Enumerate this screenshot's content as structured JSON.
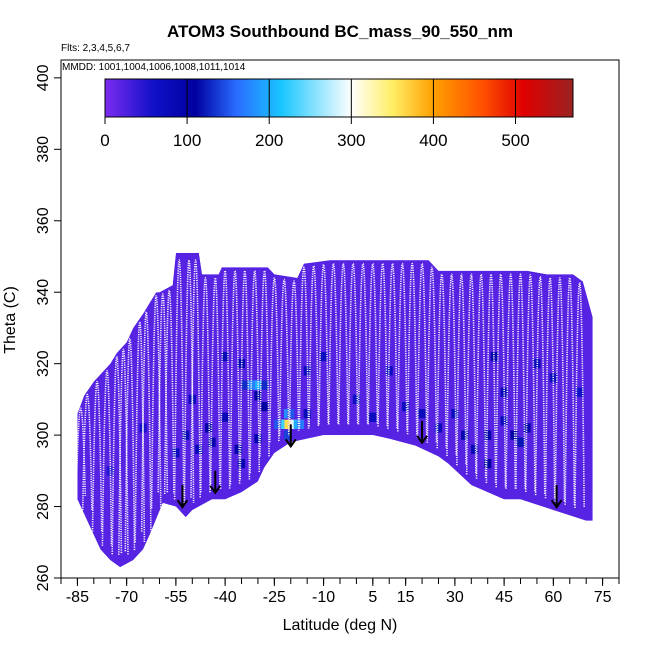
{
  "chart_data": {
    "type": "heatmap",
    "title": "ATOM3 Southbound BC_mass_90_550_nm",
    "flights_label": "Flts: 2,3,4,5,6,7",
    "dates_label": "MMDD: 1001,1004,1006,1008,1011,1014",
    "xlabel": "Latitude (deg N)",
    "ylabel": "Theta (C)",
    "xlim": [
      -90,
      80
    ],
    "ylim": [
      260,
      405
    ],
    "x_tick_labels": [
      "-85",
      "-70",
      "-55",
      "-40",
      "-25",
      "-10",
      "5",
      "15",
      "30",
      "45",
      "60",
      "75"
    ],
    "y_tick_labels": [
      "260",
      "280",
      "300",
      "320",
      "340",
      "360",
      "380",
      "400"
    ],
    "colorbar": {
      "range": [
        0,
        570
      ],
      "tick_labels": [
        "0",
        "100",
        "200",
        "300",
        "400",
        "500"
      ],
      "stops": [
        {
          "value": 0,
          "color": "#7b2cf0"
        },
        {
          "value": 60,
          "color": "#1010c8"
        },
        {
          "value": 110,
          "color": "#0000a0"
        },
        {
          "value": 160,
          "color": "#2a6cff"
        },
        {
          "value": 215,
          "color": "#19c6ff"
        },
        {
          "value": 300,
          "color": "#ffffff"
        },
        {
          "value": 350,
          "color": "#ffee66"
        },
        {
          "value": 400,
          "color": "#ffa000"
        },
        {
          "value": 460,
          "color": "#ff5000"
        },
        {
          "value": 510,
          "color": "#e00000"
        },
        {
          "value": 570,
          "color": "#9a2222"
        }
      ]
    },
    "background_value": 20,
    "domain_top": [
      [
        -85,
        306
      ],
      [
        -83,
        311
      ],
      [
        -80,
        315
      ],
      [
        -78,
        317
      ],
      [
        -75,
        320
      ],
      [
        -73,
        323
      ],
      [
        -70,
        326
      ],
      [
        -68,
        330
      ],
      [
        -65,
        334
      ],
      [
        -63,
        337
      ],
      [
        -61,
        340
      ],
      [
        -60,
        340
      ],
      [
        -56,
        342
      ],
      [
        -55,
        351
      ],
      [
        -48,
        351
      ],
      [
        -47,
        345
      ],
      [
        -42,
        345
      ],
      [
        -41,
        347
      ],
      [
        -27,
        347
      ],
      [
        -25,
        345
      ],
      [
        -18,
        344
      ],
      [
        -16,
        348
      ],
      [
        -8,
        349
      ],
      [
        22,
        349
      ],
      [
        25,
        346
      ],
      [
        52,
        346
      ],
      [
        58,
        345
      ],
      [
        66,
        345
      ],
      [
        69,
        343
      ],
      [
        72,
        333
      ]
    ],
    "domain_bottom": [
      [
        72,
        276
      ],
      [
        70,
        276
      ],
      [
        60,
        279
      ],
      [
        50,
        282
      ],
      [
        45,
        282
      ],
      [
        35,
        286
      ],
      [
        28,
        292
      ],
      [
        25,
        294
      ],
      [
        18,
        297
      ],
      [
        10,
        299
      ],
      [
        5,
        300
      ],
      [
        -10,
        300
      ],
      [
        -20,
        298
      ],
      [
        -25,
        295
      ],
      [
        -28,
        291
      ],
      [
        -30,
        287
      ],
      [
        -35,
        284
      ],
      [
        -40,
        282
      ],
      [
        -44,
        282
      ],
      [
        -50,
        279
      ],
      [
        -52,
        277
      ],
      [
        -55,
        280
      ],
      [
        -59,
        281
      ],
      [
        -63,
        272
      ],
      [
        -65,
        268
      ],
      [
        -68,
        265
      ],
      [
        -70,
        264
      ],
      [
        -72,
        263
      ],
      [
        -75,
        265
      ],
      [
        -78,
        268
      ],
      [
        -80,
        272
      ],
      [
        -85,
        282
      ]
    ],
    "enhanced_cells": [
      {
        "lat": -21,
        "theta": 303,
        "value": 530
      },
      {
        "lat": -20,
        "theta": 303,
        "value": 390
      },
      {
        "lat": -22,
        "theta": 303,
        "value": 360
      },
      {
        "lat": -19,
        "theta": 303,
        "value": 290
      },
      {
        "lat": -23,
        "theta": 303,
        "value": 230
      },
      {
        "lat": -18,
        "theta": 303,
        "value": 200
      },
      {
        "lat": -17,
        "theta": 303,
        "value": 170
      },
      {
        "lat": -24,
        "theta": 303,
        "value": 150
      },
      {
        "lat": -21,
        "theta": 306,
        "value": 180
      },
      {
        "lat": -20,
        "theta": 306,
        "value": 150
      },
      {
        "lat": -21,
        "theta": 300,
        "value": 140
      },
      {
        "lat": -30,
        "theta": 314,
        "value": 200
      },
      {
        "lat": -32,
        "theta": 314,
        "value": 175
      },
      {
        "lat": -28,
        "theta": 314,
        "value": 130
      },
      {
        "lat": -34,
        "theta": 314,
        "value": 130
      },
      {
        "lat": -30,
        "theta": 311,
        "value": 105
      },
      {
        "lat": -28,
        "theta": 308,
        "value": 110
      },
      {
        "lat": -45,
        "theta": 302,
        "value": 110
      },
      {
        "lat": -44,
        "theta": 298,
        "value": 95
      },
      {
        "lat": -36,
        "theta": 296,
        "value": 100
      },
      {
        "lat": -35,
        "theta": 292,
        "value": 90
      },
      {
        "lat": -30,
        "theta": 299,
        "value": 90
      },
      {
        "lat": -40,
        "theta": 305,
        "value": 85
      },
      {
        "lat": -48,
        "theta": 296,
        "value": 85
      },
      {
        "lat": -52,
        "theta": 300,
        "value": 80
      },
      {
        "lat": -50,
        "theta": 310,
        "value": 75
      },
      {
        "lat": -55,
        "theta": 295,
        "value": 70
      },
      {
        "lat": -35,
        "theta": 320,
        "value": 90
      },
      {
        "lat": -40,
        "theta": 322,
        "value": 80
      },
      {
        "lat": -15,
        "theta": 318,
        "value": 75
      },
      {
        "lat": -10,
        "theta": 322,
        "value": 70
      },
      {
        "lat": -15,
        "theta": 306,
        "value": 80
      },
      {
        "lat": 0,
        "theta": 310,
        "value": 65
      },
      {
        "lat": 5,
        "theta": 305,
        "value": 70
      },
      {
        "lat": 10,
        "theta": 318,
        "value": 70
      },
      {
        "lat": 15,
        "theta": 308,
        "value": 65
      },
      {
        "lat": 20,
        "theta": 306,
        "value": 75
      },
      {
        "lat": 25,
        "theta": 302,
        "value": 80
      },
      {
        "lat": 30,
        "theta": 306,
        "value": 70
      },
      {
        "lat": 33,
        "theta": 300,
        "value": 95
      },
      {
        "lat": 36,
        "theta": 296,
        "value": 85
      },
      {
        "lat": 40,
        "theta": 292,
        "value": 110
      },
      {
        "lat": 40,
        "theta": 300,
        "value": 100
      },
      {
        "lat": 42,
        "theta": 322,
        "value": 95
      },
      {
        "lat": 45,
        "theta": 312,
        "value": 80
      },
      {
        "lat": 45,
        "theta": 304,
        "value": 75
      },
      {
        "lat": 48,
        "theta": 300,
        "value": 105
      },
      {
        "lat": 50,
        "theta": 298,
        "value": 120
      },
      {
        "lat": 52,
        "theta": 302,
        "value": 100
      },
      {
        "lat": 55,
        "theta": 320,
        "value": 80
      },
      {
        "lat": 60,
        "theta": 316,
        "value": 70
      },
      {
        "lat": 68,
        "theta": 312,
        "value": 60
      },
      {
        "lat": -65,
        "theta": 302,
        "value": 55
      },
      {
        "lat": -75,
        "theta": 290,
        "value": 50
      }
    ],
    "flight_track_peaks": [
      -84,
      -82,
      -79,
      -76,
      -73,
      -71,
      -69,
      -66,
      -64,
      -61,
      -59,
      -57,
      -54,
      -51,
      -49,
      -46,
      -43,
      -40,
      -37,
      -34,
      -31,
      -28,
      -25,
      -22,
      -19,
      -16,
      -13,
      -10,
      -7,
      -4,
      -1,
      2,
      5,
      8,
      11,
      14,
      17,
      20,
      23,
      26,
      29,
      32,
      35,
      38,
      41,
      44,
      47,
      50,
      53,
      56,
      59,
      62,
      65,
      68
    ],
    "arrows": [
      {
        "lat": -53,
        "theta": 286
      },
      {
        "lat": -43,
        "theta": 290
      },
      {
        "lat": -20,
        "theta": 303
      },
      {
        "lat": 20,
        "theta": 304
      },
      {
        "lat": 61,
        "theta": 286
      }
    ]
  }
}
